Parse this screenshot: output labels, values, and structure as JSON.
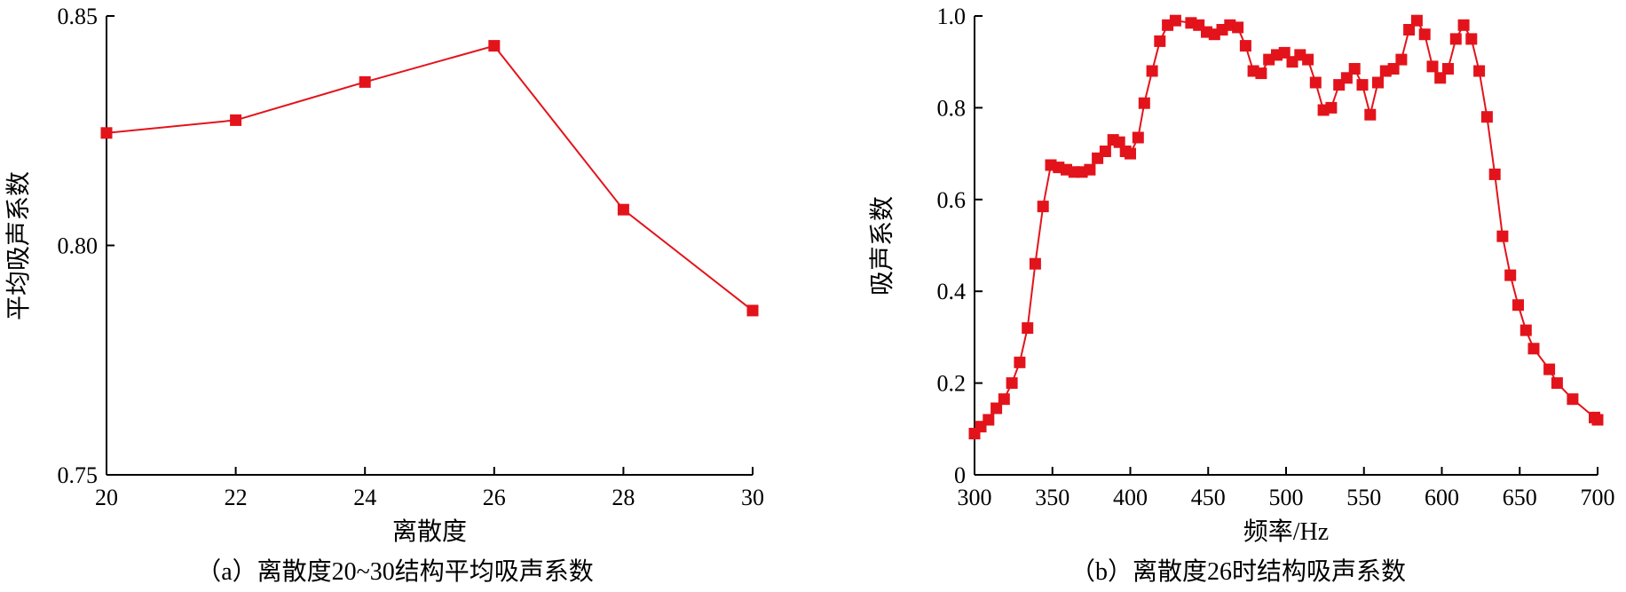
{
  "chart_data": [
    {
      "type": "line",
      "color": "#e3131b",
      "marker": "square",
      "xlabel": "离散度",
      "ylabel": "平均吸声系数",
      "caption": "（a）离散度20~30结构平均吸声系数",
      "xlim": [
        20,
        30
      ],
      "ylim": [
        0.75,
        0.85
      ],
      "xticks": [
        "20",
        "22",
        "24",
        "26",
        "28",
        "30"
      ],
      "yticks": [
        "0.75",
        "0.80",
        "0.85"
      ],
      "x": [
        20,
        22,
        24,
        26,
        28,
        30
      ],
      "y": [
        0.8245,
        0.8273,
        0.8356,
        0.8435,
        0.8078,
        0.7858
      ]
    },
    {
      "type": "line",
      "color": "#e3131b",
      "marker": "square",
      "xlabel": "频率/Hz",
      "ylabel": "吸声系数",
      "caption": "（b）离散度26时结构吸声系数",
      "xlim": [
        300,
        700
      ],
      "ylim": [
        0,
        1.0
      ],
      "xticks": [
        "300",
        "350",
        "400",
        "450",
        "500",
        "550",
        "600",
        "650",
        "700"
      ],
      "yticks": [
        "0",
        "0.2",
        "0.4",
        "0.6",
        "0.8",
        "1.0"
      ],
      "x": [
        300,
        304,
        309,
        314,
        319,
        324,
        329,
        334,
        339,
        344,
        349,
        354,
        359,
        364,
        369,
        374,
        379,
        384,
        389,
        393,
        397,
        400,
        405,
        409,
        414,
        419,
        424,
        429,
        439,
        444,
        449,
        454,
        459,
        464,
        469,
        474,
        479,
        484,
        489,
        494,
        499,
        504,
        509,
        514,
        519,
        524,
        529,
        534,
        539,
        544,
        549,
        554,
        559,
        564,
        569,
        574,
        579,
        584,
        589,
        594,
        599,
        604,
        609,
        614,
        619,
        624,
        629,
        634,
        639,
        644,
        649,
        654,
        659,
        669,
        674,
        684,
        698,
        700
      ],
      "y": [
        0.09,
        0.105,
        0.12,
        0.145,
        0.165,
        0.2,
        0.245,
        0.32,
        0.46,
        0.585,
        0.675,
        0.67,
        0.665,
        0.66,
        0.66,
        0.665,
        0.69,
        0.705,
        0.73,
        0.725,
        0.705,
        0.7,
        0.735,
        0.81,
        0.88,
        0.945,
        0.98,
        0.99,
        0.985,
        0.98,
        0.965,
        0.96,
        0.97,
        0.98,
        0.975,
        0.935,
        0.88,
        0.875,
        0.905,
        0.915,
        0.92,
        0.9,
        0.915,
        0.905,
        0.855,
        0.795,
        0.8,
        0.85,
        0.865,
        0.885,
        0.85,
        0.785,
        0.855,
        0.88,
        0.885,
        0.905,
        0.97,
        0.99,
        0.96,
        0.89,
        0.865,
        0.885,
        0.95,
        0.98,
        0.95,
        0.88,
        0.78,
        0.655,
        0.52,
        0.435,
        0.37,
        0.315,
        0.275,
        0.23,
        0.2,
        0.165,
        0.125,
        0.12
      ]
    }
  ]
}
